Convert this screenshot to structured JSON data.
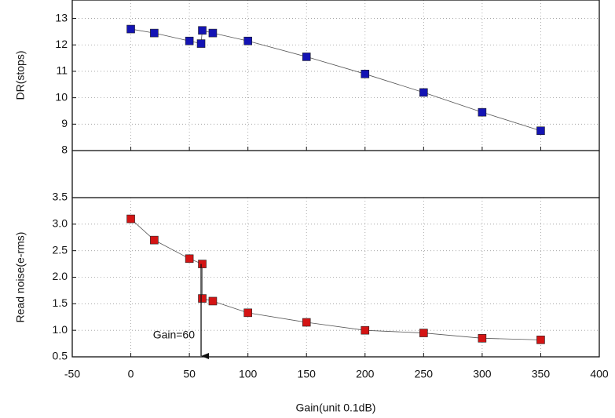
{
  "chart_data": [
    {
      "type": "scatter",
      "ylabel": "DR(stops)",
      "x": [
        0,
        20,
        50,
        60,
        61,
        70,
        100,
        150,
        200,
        250,
        300,
        350
      ],
      "series": [
        {
          "color": "#1414b4",
          "values": [
            12.6,
            12.45,
            12.15,
            12.05,
            12.55,
            12.45,
            12.15,
            11.55,
            10.9,
            10.2,
            9.45,
            8.75
          ]
        }
      ],
      "xlim": [
        -50,
        400
      ],
      "xticks": [
        -50,
        0,
        50,
        100,
        150,
        200,
        250,
        300,
        350,
        400
      ],
      "ylim": [
        8,
        13.7
      ],
      "yticks": [
        8,
        9,
        10,
        11,
        12,
        13
      ],
      "grid": true
    },
    {
      "type": "scatter",
      "ylabel": "Read noise(e-rms)",
      "xlabel": "Gain(unit 0.1dB)",
      "x": [
        0,
        20,
        50,
        61,
        61,
        70,
        100,
        150,
        200,
        250,
        300,
        350
      ],
      "series": [
        {
          "color": "#d41414",
          "values": [
            3.1,
            2.7,
            2.35,
            2.25,
            1.6,
            1.55,
            1.33,
            1.15,
            1.0,
            0.95,
            0.85,
            0.82
          ]
        }
      ],
      "xlim": [
        -50,
        400
      ],
      "xticks": [
        -50,
        0,
        50,
        100,
        150,
        200,
        250,
        300,
        350,
        400
      ],
      "ylim": [
        0.5,
        3.5
      ],
      "yticks": [
        0.5,
        {
          "value": 1.0,
          "label": "1.0"
        },
        1.5,
        {
          "value": 2.0,
          "label": "2.0"
        },
        2.5,
        {
          "value": 3.0,
          "label": "3.0"
        },
        3.5
      ],
      "grid": true,
      "annotation": {
        "text": "Gain=60",
        "x": 60,
        "y_start": 2.25,
        "y_end": 0.5
      }
    }
  ]
}
